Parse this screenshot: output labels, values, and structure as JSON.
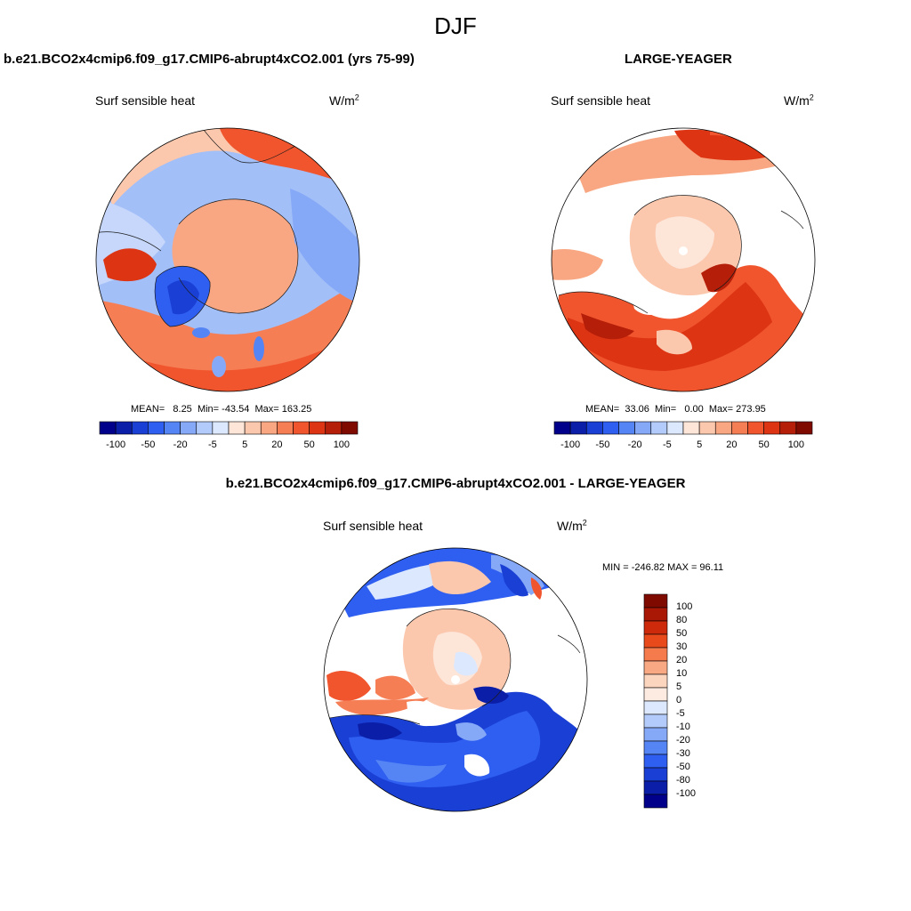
{
  "figure": {
    "title": "DJF",
    "panels": [
      {
        "id": "model",
        "header": "b.e21.BCO2x4cmip6.f09_g17.CMIP6-abrupt4xCO2.001 (yrs 75-99)",
        "variable": "Surf sensible heat",
        "units_base": "W/m",
        "units_exp": "2",
        "stats": {
          "mean_label": "MEAN=",
          "mean": "8.25",
          "min_label": "Min=",
          "min": "-43.54",
          "max_label": "Max=",
          "max": "163.25"
        },
        "pole_masked": false
      },
      {
        "id": "obs",
        "header": "LARGE-YEAGER",
        "variable": "Surf sensible heat",
        "units_base": "W/m",
        "units_exp": "2",
        "stats": {
          "mean_label": "MEAN=",
          "mean": "33.06",
          "min_label": "Min=",
          "min": "0.00",
          "max_label": "Max=",
          "max": "273.95"
        },
        "pole_masked": true
      },
      {
        "id": "diff",
        "header": "b.e21.BCO2x4cmip6.f09_g17.CMIP6-abrupt4xCO2.001 - LARGE-YEAGER",
        "variable": "Surf sensible heat",
        "units_base": "W/m",
        "units_exp": "2",
        "minmax_text": "MIN = -246.82 MAX =  96.11",
        "pole_masked": true
      }
    ]
  },
  "colorbar_horizontal": {
    "colors": [
      "#00008b",
      "#0b1ea8",
      "#1a3fd4",
      "#2f5ff0",
      "#5585f5",
      "#86a9f7",
      "#b3cbfa",
      "#dce8fd",
      "#fde5d8",
      "#fbc8ae",
      "#f9a782",
      "#f67e55",
      "#f0552e",
      "#dd3414",
      "#b51e08",
      "#7f0a00"
    ],
    "tick_labels": [
      "-100",
      "-50",
      "-20",
      "-5",
      "5",
      "20",
      "50",
      "100"
    ]
  },
  "colorbar_vertical": {
    "colors": [
      "#7f0a00",
      "#a81805",
      "#cc2a0b",
      "#e84a1c",
      "#f57a4c",
      "#f9a884",
      "#fcd5bf",
      "#fdeae0",
      "#dce8fd",
      "#b3cbfa",
      "#86a9f7",
      "#5585f5",
      "#2f5ff0",
      "#1a3fd4",
      "#0b1ea8",
      "#00008b"
    ],
    "tick_labels": [
      "100",
      "80",
      "50",
      "30",
      "20",
      "10",
      "5",
      "0",
      "-5",
      "-10",
      "-20",
      "-30",
      "-50",
      "-80",
      "-100"
    ]
  },
  "palette": {
    "land_white": "#ffffff",
    "coast": "#1a1a1a"
  }
}
